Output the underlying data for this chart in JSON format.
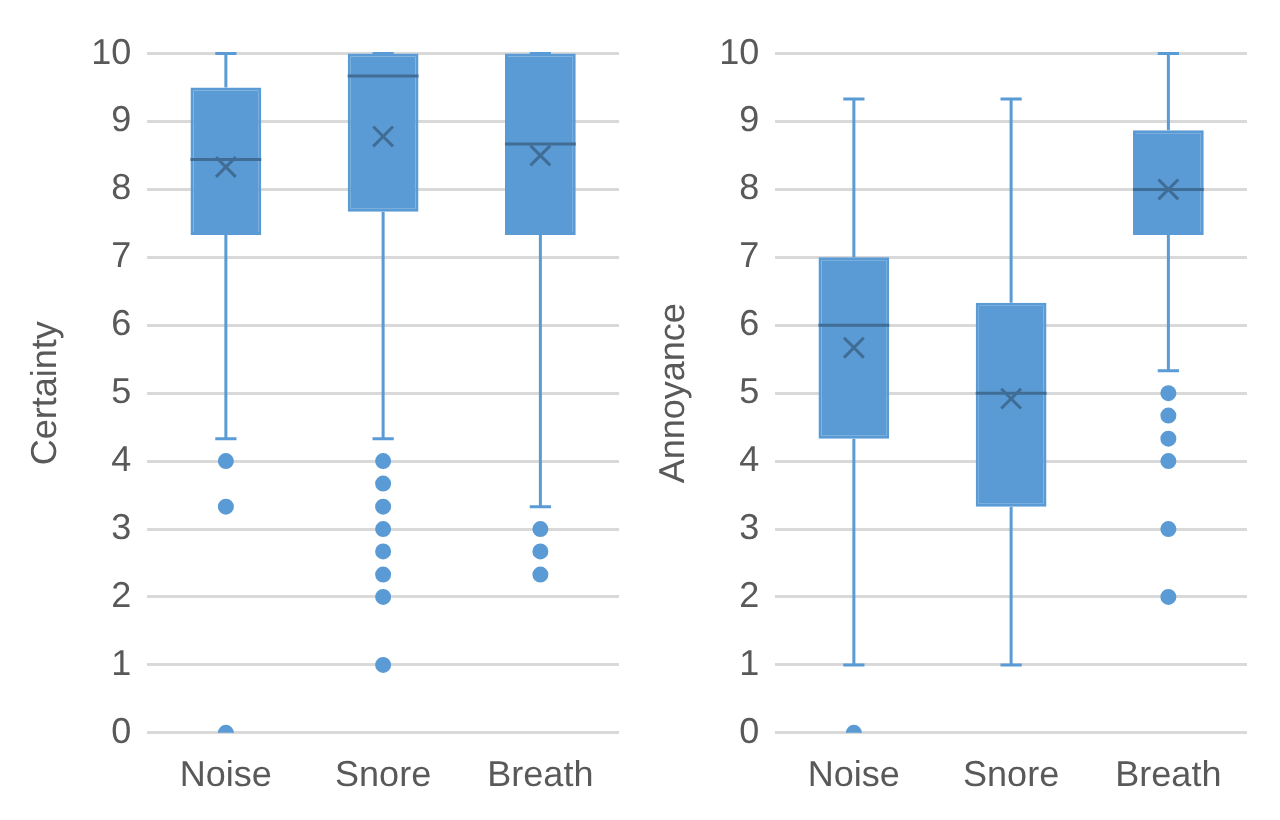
{
  "chart_data": [
    {
      "type": "box",
      "ylabel": "Certainty",
      "categories": [
        "Noise",
        "Snore",
        "Breath"
      ],
      "color": "#5b9bd5",
      "ylim": [
        0,
        10
      ],
      "yticks": [
        0,
        1,
        2,
        3,
        4,
        5,
        6,
        7,
        8,
        9,
        10
      ],
      "grid": "y",
      "boxes": [
        {
          "low": 4.33,
          "q1": 7.33,
          "median": 8.44,
          "q3": 9.5,
          "high": 10,
          "mean": 8.33,
          "outliers": [
            4,
            3.33,
            0
          ]
        },
        {
          "low": 4.33,
          "q1": 7.67,
          "median": 9.67,
          "q3": 10,
          "high": 10,
          "mean": 8.78,
          "outliers": [
            4,
            3.67,
            3.33,
            3,
            2.67,
            2.33,
            2,
            1
          ]
        },
        {
          "low": 3.33,
          "q1": 7.33,
          "median": 8.67,
          "q3": 10,
          "high": 10,
          "mean": 8.5,
          "outliers": [
            3,
            2.67,
            2.33
          ]
        }
      ]
    },
    {
      "type": "box",
      "ylabel": "Annoyance",
      "categories": [
        "Noise",
        "Snore",
        "Breath"
      ],
      "color": "#5b9bd5",
      "ylim": [
        0,
        10
      ],
      "yticks": [
        0,
        1,
        2,
        3,
        4,
        5,
        6,
        7,
        8,
        9,
        10
      ],
      "grid": "y",
      "boxes": [
        {
          "low": 1,
          "q1": 4.33,
          "median": 6,
          "q3": 7,
          "high": 9.33,
          "mean": 5.67,
          "outliers": [
            0
          ]
        },
        {
          "low": 1,
          "q1": 3.33,
          "median": 5,
          "q3": 6.33,
          "high": 9.33,
          "mean": 4.92
        },
        {
          "low": 5.33,
          "q1": 7.33,
          "median": 8,
          "q3": 8.87,
          "high": 10,
          "mean": 8,
          "outliers": [
            5,
            4.67,
            4.33,
            4,
            3,
            2
          ]
        }
      ]
    }
  ]
}
